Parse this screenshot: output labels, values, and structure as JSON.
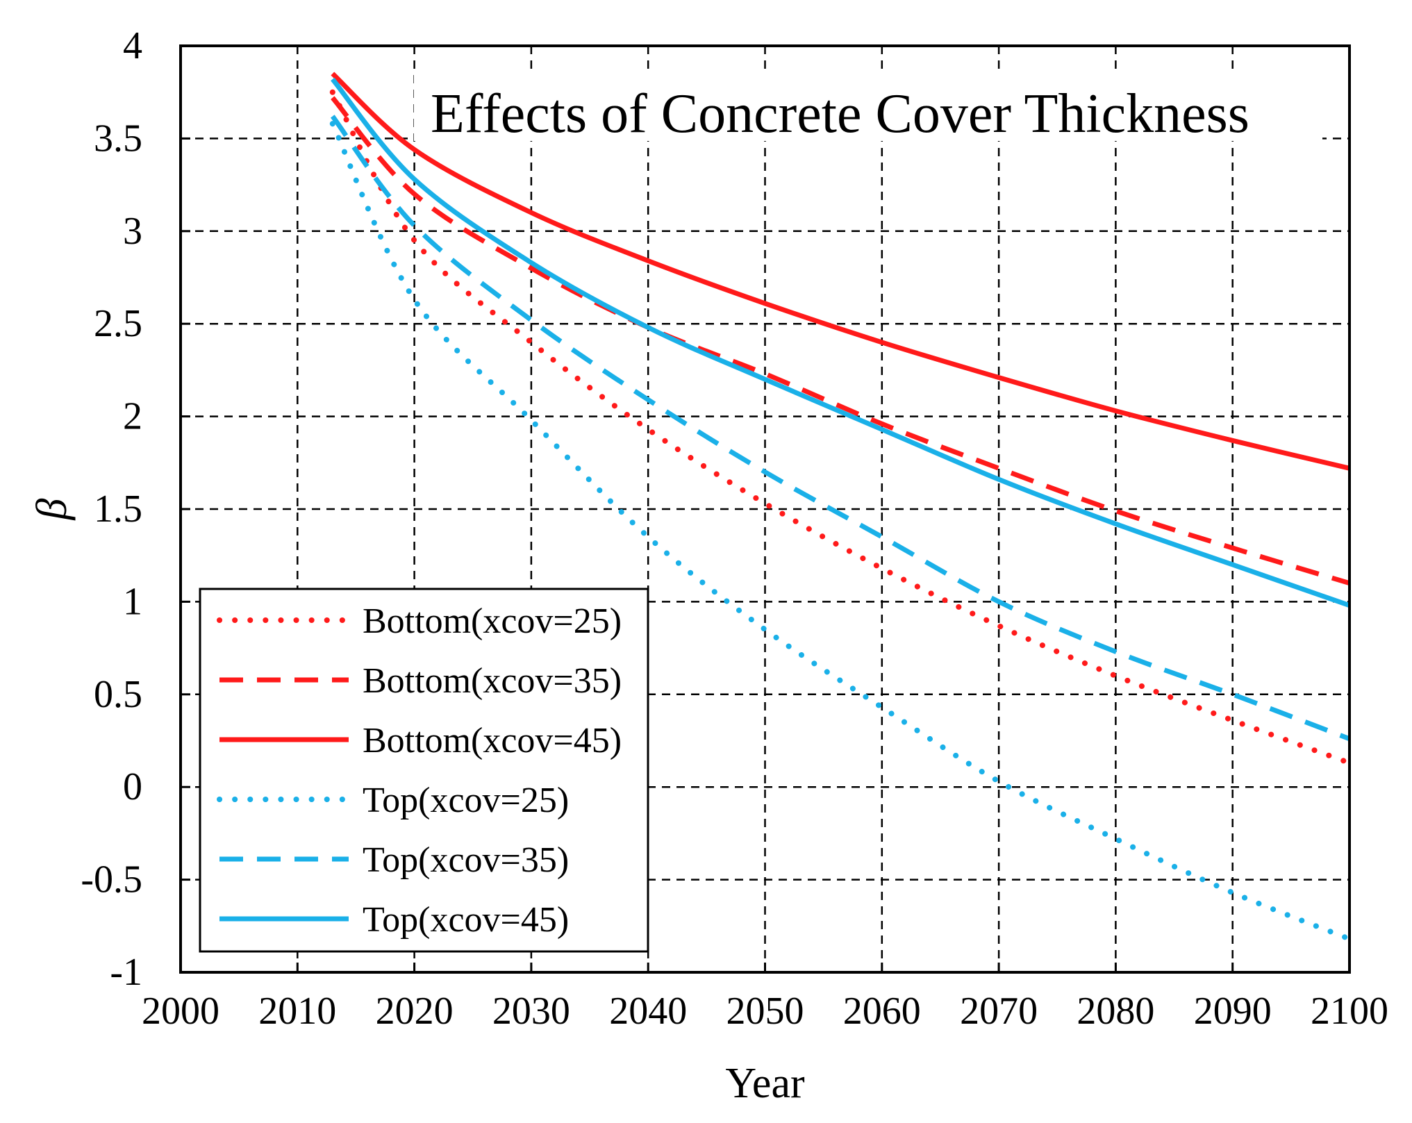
{
  "chart_data": {
    "type": "line",
    "title": "Effects of Concrete Cover Thickness",
    "xlabel": "Year",
    "ylabel": "β",
    "xlim": [
      2000,
      2100
    ],
    "ylim": [
      -1,
      4
    ],
    "xticks": [
      2000,
      2010,
      2020,
      2030,
      2040,
      2050,
      2060,
      2070,
      2080,
      2090,
      2100
    ],
    "yticks": [
      -1,
      -0.5,
      0,
      0.5,
      1,
      1.5,
      2,
      2.5,
      3,
      3.5,
      4
    ],
    "xtick_labels": [
      "2000",
      "2010",
      "2020",
      "2030",
      "2040",
      "2050",
      "2060",
      "2070",
      "2080",
      "2090",
      "2100"
    ],
    "ytick_labels": [
      "-1",
      "-0.5",
      "0",
      "0.5",
      "1",
      "1.5",
      "2",
      "2.5",
      "3",
      "3.5",
      "4"
    ],
    "grid": true,
    "legend_position": "lower-left",
    "x": [
      2013,
      2020,
      2030,
      2040,
      2050,
      2060,
      2070,
      2080,
      2090,
      2100
    ],
    "series": [
      {
        "name": "Bottom(xcov=25)",
        "color": "#ff1a1a",
        "style": "dotted",
        "values": [
          3.75,
          2.95,
          2.4,
          1.93,
          1.53,
          1.18,
          0.87,
          0.6,
          0.36,
          0.13
        ]
      },
      {
        "name": "Bottom(xcov=35)",
        "color": "#ff1a1a",
        "style": "dashed",
        "values": [
          3.72,
          3.2,
          2.8,
          2.48,
          2.23,
          1.96,
          1.72,
          1.49,
          1.29,
          1.1
        ]
      },
      {
        "name": "Bottom(xcov=45)",
        "color": "#ff1a1a",
        "style": "solid",
        "values": [
          3.85,
          3.44,
          3.1,
          2.84,
          2.61,
          2.4,
          2.21,
          2.03,
          1.87,
          1.72
        ]
      },
      {
        "name": "Top(xcov=25)",
        "color": "#1ab0e8",
        "style": "dotted",
        "values": [
          3.58,
          2.63,
          1.98,
          1.35,
          0.85,
          0.43,
          0.03,
          -0.28,
          -0.57,
          -0.82
        ]
      },
      {
        "name": "Top(xcov=35)",
        "color": "#1ab0e8",
        "style": "dashed",
        "values": [
          3.62,
          3.03,
          2.52,
          2.09,
          1.7,
          1.35,
          1.0,
          0.73,
          0.5,
          0.26
        ]
      },
      {
        "name": "Top(xcov=45)",
        "color": "#1ab0e8",
        "style": "solid",
        "values": [
          3.82,
          3.28,
          2.83,
          2.48,
          2.2,
          1.93,
          1.66,
          1.42,
          1.2,
          0.98
        ]
      }
    ]
  }
}
